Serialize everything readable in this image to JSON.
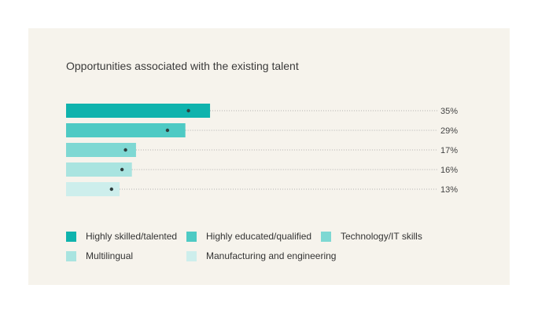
{
  "chart_data": {
    "type": "bar",
    "orientation": "horizontal",
    "title": "Opportunities associated with the existing talent",
    "categories": [
      "Highly skilled/talented",
      "Highly educated/qualified",
      "Technology/IT skills",
      "Multilingual",
      "Manufacturing and engineering"
    ],
    "values": [
      35,
      29,
      17,
      16,
      13
    ],
    "value_labels": [
      "35%",
      "29%",
      "17%",
      "16%",
      "13%"
    ],
    "unit": "%",
    "colors": [
      "#0fb3ad",
      "#4ecac4",
      "#7ed8d3",
      "#a9e4e0",
      "#cdeeec"
    ],
    "dot_color": "#2f3f3f",
    "leader_color": "#9a9a9a",
    "legend_position": "bottom",
    "grid": false
  }
}
